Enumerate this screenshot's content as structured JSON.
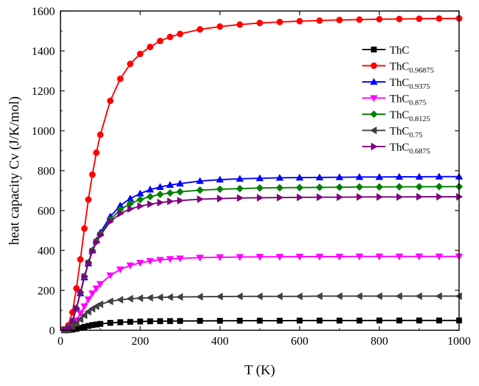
{
  "chart_data": {
    "type": "line",
    "title": "",
    "xlabel": "T (K)",
    "ylabel": "heat capacity Cv (J/K/mol)",
    "xlim": [
      0,
      1000
    ],
    "ylim": [
      0,
      1600
    ],
    "xticks": [
      0,
      200,
      400,
      600,
      800,
      1000
    ],
    "yticks": [
      0,
      200,
      400,
      600,
      800,
      1000,
      1200,
      1400,
      1600
    ],
    "grid": false,
    "legend_position": "upper-right",
    "series": [
      {
        "name": "ThC",
        "base": "ThC",
        "sub": "",
        "color": "#000000",
        "marker": "square",
        "x": [
          10,
          20,
          30,
          40,
          50,
          60,
          70,
          80,
          90,
          100,
          125,
          150,
          175,
          200,
          225,
          250,
          275,
          300,
          350,
          400,
          450,
          500,
          550,
          600,
          650,
          700,
          750,
          800,
          850,
          900,
          950,
          1000
        ],
        "y": [
          0.2,
          1,
          3,
          7,
          12,
          17,
          22,
          26,
          29,
          32,
          37,
          40,
          42,
          44,
          45,
          45.5,
          46,
          46.5,
          47,
          47.5,
          48,
          48,
          48,
          48.5,
          48.5,
          48.5,
          48.5,
          49,
          49,
          49,
          49,
          49
        ]
      },
      {
        "name": "ThC0.96875",
        "base": "ThC",
        "sub": "0.96875",
        "color": "#ff0000",
        "marker": "circle",
        "x": [
          10,
          20,
          30,
          40,
          50,
          60,
          70,
          80,
          90,
          100,
          125,
          150,
          175,
          200,
          225,
          250,
          275,
          300,
          350,
          400,
          450,
          500,
          550,
          600,
          650,
          700,
          750,
          800,
          850,
          900,
          950,
          1000
        ],
        "y": [
          5,
          25,
          90,
          210,
          355,
          510,
          655,
          780,
          890,
          980,
          1150,
          1260,
          1335,
          1385,
          1420,
          1450,
          1470,
          1485,
          1508,
          1522,
          1532,
          1540,
          1545,
          1549,
          1552,
          1555,
          1557,
          1559,
          1560,
          1561,
          1562,
          1563
        ]
      },
      {
        "name": "ThC0.9375",
        "base": "ThC",
        "sub": "0.9375",
        "color": "#0000ff",
        "marker": "triangle-up",
        "x": [
          10,
          20,
          30,
          40,
          50,
          60,
          70,
          80,
          90,
          100,
          125,
          150,
          175,
          200,
          225,
          250,
          275,
          300,
          350,
          400,
          450,
          500,
          550,
          600,
          650,
          700,
          750,
          800,
          850,
          900,
          950,
          1000
        ],
        "y": [
          2,
          12,
          45,
          110,
          185,
          265,
          335,
          400,
          450,
          490,
          570,
          625,
          660,
          685,
          705,
          718,
          728,
          735,
          748,
          755,
          759,
          762,
          764,
          765,
          766,
          767,
          768,
          768,
          769,
          769,
          770,
          770
        ]
      },
      {
        "name": "ThC0.875",
        "base": "ThC",
        "sub": "0.875",
        "color": "#ff00ff",
        "marker": "triangle-down",
        "x": [
          10,
          20,
          30,
          40,
          50,
          60,
          70,
          80,
          90,
          100,
          125,
          150,
          175,
          200,
          225,
          250,
          275,
          300,
          350,
          400,
          450,
          500,
          550,
          600,
          650,
          700,
          750,
          800,
          850,
          900,
          950,
          1000
        ],
        "y": [
          1,
          6,
          22,
          50,
          85,
          120,
          155,
          185,
          210,
          232,
          275,
          305,
          325,
          338,
          347,
          353,
          357,
          360,
          364,
          366,
          367,
          368,
          368,
          369,
          369,
          369,
          370,
          370,
          370,
          370,
          370,
          370
        ]
      },
      {
        "name": "ThC0.8125",
        "base": "ThC",
        "sub": "0.8125",
        "color": "#008000",
        "marker": "diamond",
        "x": [
          10,
          20,
          30,
          40,
          50,
          60,
          70,
          80,
          90,
          100,
          125,
          150,
          175,
          200,
          225,
          250,
          275,
          300,
          350,
          400,
          450,
          500,
          550,
          600,
          650,
          700,
          750,
          800,
          850,
          900,
          950,
          1000
        ],
        "y": [
          2,
          12,
          45,
          110,
          190,
          270,
          340,
          400,
          445,
          482,
          555,
          605,
          635,
          655,
          670,
          681,
          688,
          694,
          702,
          707,
          710,
          713,
          714,
          715,
          716,
          717,
          718,
          718,
          719,
          719,
          720,
          720
        ]
      },
      {
        "name": "ThC0.75",
        "base": "ThC",
        "sub": "0.75",
        "color": "#404040",
        "marker": "triangle-left",
        "x": [
          10,
          20,
          30,
          40,
          50,
          60,
          70,
          80,
          90,
          100,
          125,
          150,
          175,
          200,
          225,
          250,
          275,
          300,
          350,
          400,
          450,
          500,
          550,
          600,
          650,
          700,
          750,
          800,
          850,
          900,
          950,
          1000
        ],
        "y": [
          0.5,
          4,
          15,
          34,
          55,
          75,
          93,
          108,
          120,
          130,
          145,
          153,
          158,
          161,
          163,
          165,
          166,
          167,
          168,
          169,
          170,
          170,
          170,
          170,
          171,
          171,
          171,
          171,
          171,
          171,
          171,
          171
        ]
      },
      {
        "name": "ThC0.6875",
        "base": "ThC",
        "sub": "0.6875",
        "color": "#800080",
        "marker": "triangle-right",
        "x": [
          10,
          20,
          30,
          40,
          50,
          60,
          70,
          80,
          90,
          100,
          125,
          150,
          175,
          200,
          225,
          250,
          275,
          300,
          350,
          400,
          450,
          500,
          550,
          600,
          650,
          700,
          750,
          800,
          850,
          900,
          950,
          1000
        ],
        "y": [
          2,
          12,
          45,
          110,
          190,
          268,
          335,
          395,
          440,
          475,
          545,
          585,
          608,
          622,
          632,
          640,
          646,
          650,
          657,
          660,
          663,
          664,
          665,
          666,
          667,
          667,
          668,
          668,
          668,
          669,
          669,
          669
        ]
      }
    ]
  }
}
